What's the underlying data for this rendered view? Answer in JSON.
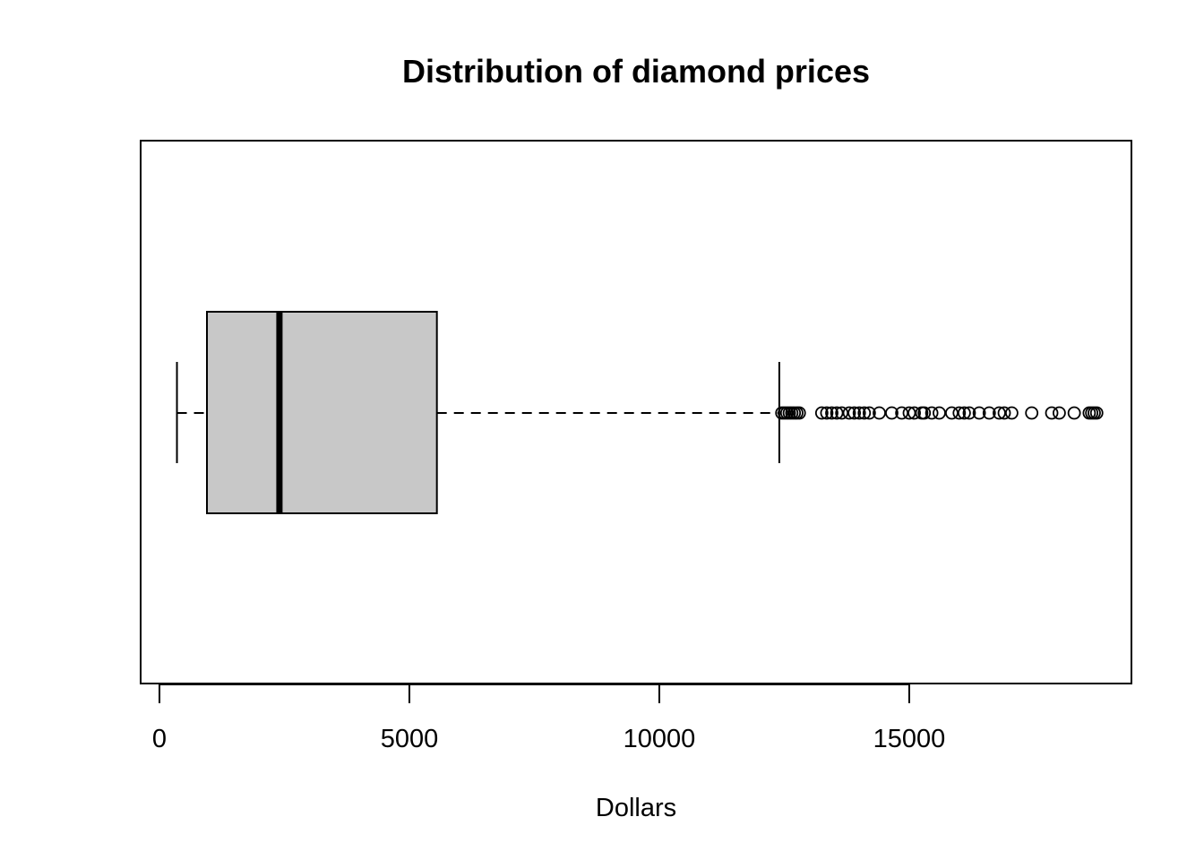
{
  "chart_data": {
    "type": "boxplot",
    "orientation": "horizontal",
    "title": "Distribution of diamond prices",
    "xlabel": "Dollars",
    "xlim": [
      -360,
      19500
    ],
    "x_ticks": [
      0,
      5000,
      10000,
      15000
    ],
    "x_tick_labels": [
      "0",
      "5000",
      "10000",
      "15000"
    ],
    "grid": false,
    "box": {
      "whisker_low": 350,
      "q1": 950,
      "median": 2400,
      "q3": 5550,
      "whisker_high": 12400,
      "fill_color": "#c8c8c8"
    },
    "outliers": [
      12450,
      12500,
      12550,
      12600,
      12650,
      12700,
      12750,
      12800,
      13250,
      13350,
      13450,
      13550,
      13650,
      13800,
      13900,
      14000,
      14100,
      14200,
      14400,
      14650,
      14850,
      15000,
      15100,
      15250,
      15300,
      15450,
      15600,
      15850,
      16000,
      16100,
      16200,
      16400,
      16600,
      16800,
      16900,
      17050,
      17450,
      17850,
      18000,
      18300,
      18600,
      18650,
      18700,
      18750
    ]
  }
}
